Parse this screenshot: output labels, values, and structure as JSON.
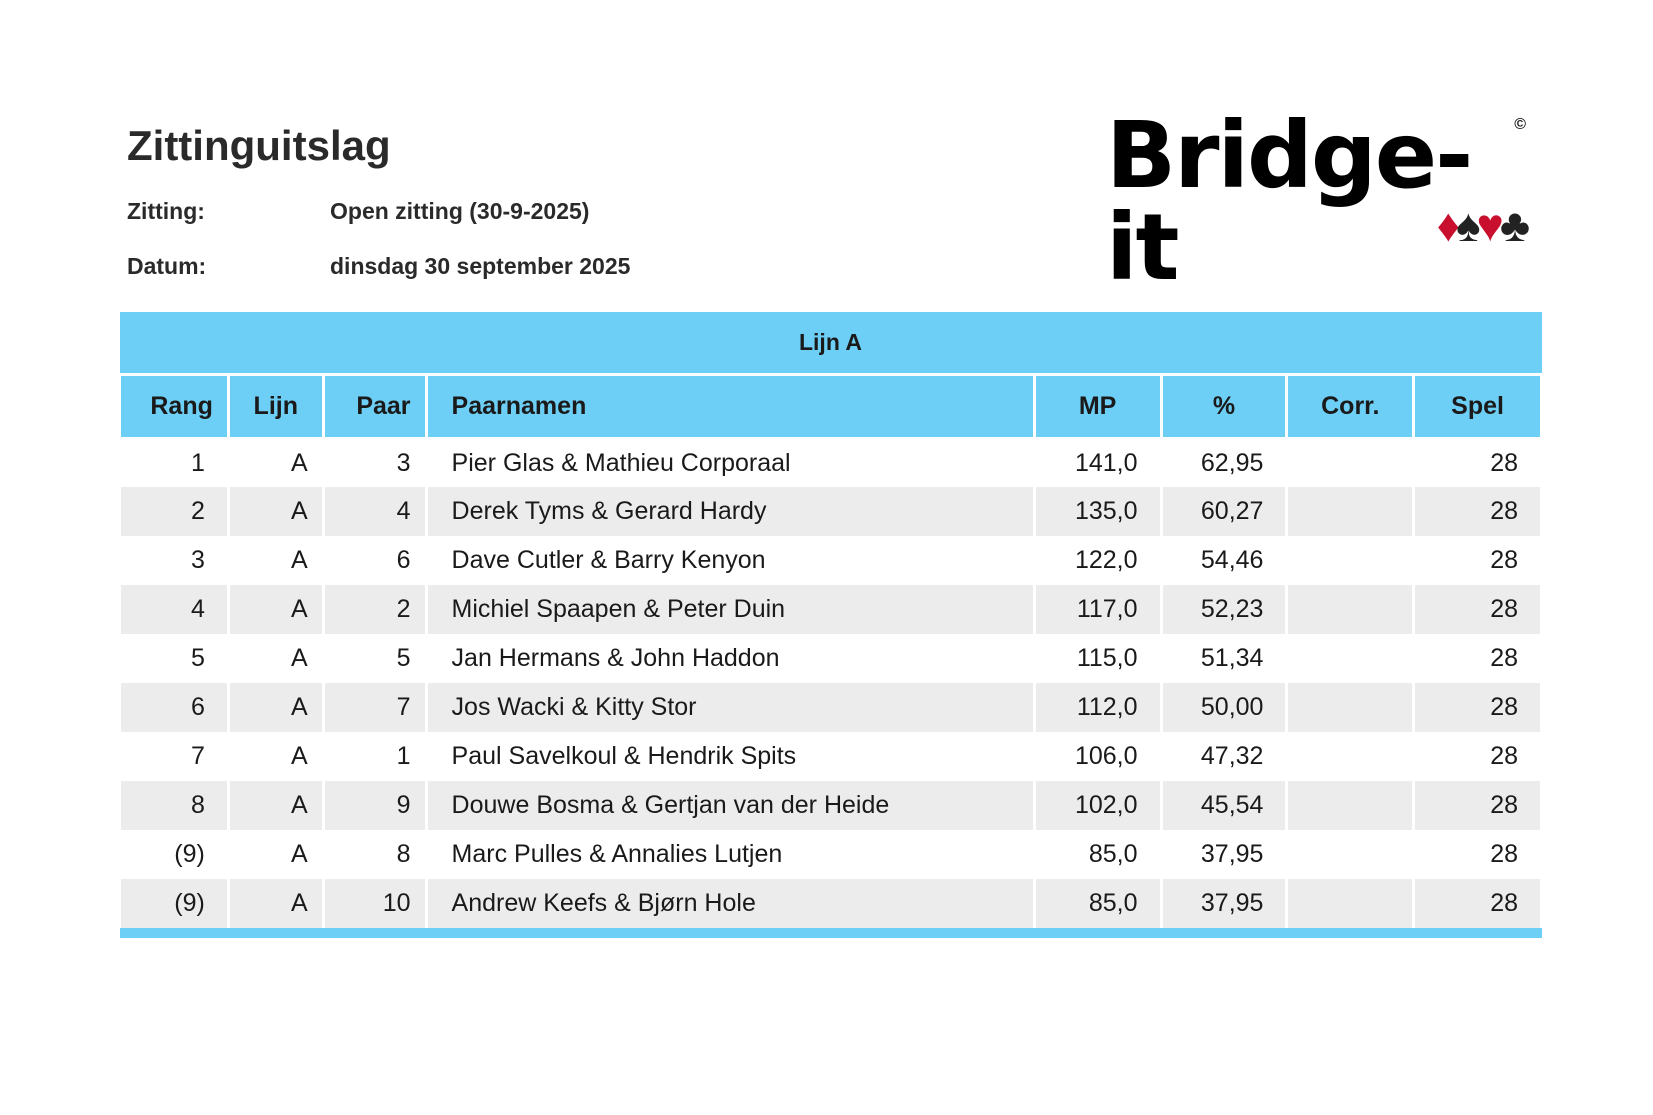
{
  "title": "Zittinguitslag",
  "meta": {
    "zitting_label": "Zitting:",
    "zitting_value": "Open zitting (30-9-2025)",
    "datum_label": "Datum:",
    "datum_value": "dinsdag 30 september 2025"
  },
  "logo": {
    "text": "Bridge-it",
    "copyright": "©",
    "suits": [
      "♦",
      "♠",
      "♥",
      "♣"
    ]
  },
  "table": {
    "group_title": "Lijn A",
    "headers": [
      "Rang",
      "Lijn",
      "Paar",
      "Paarnamen",
      "MP",
      "%",
      "Corr.",
      "Spel"
    ],
    "rows": [
      [
        "1",
        "A",
        "3",
        "Pier Glas & Mathieu Corporaal",
        "141,0",
        "62,95",
        "",
        "28"
      ],
      [
        "2",
        "A",
        "4",
        "Derek Tyms & Gerard Hardy",
        "135,0",
        "60,27",
        "",
        "28"
      ],
      [
        "3",
        "A",
        "6",
        "Dave Cutler & Barry Kenyon",
        "122,0",
        "54,46",
        "",
        "28"
      ],
      [
        "4",
        "A",
        "2",
        "Michiel Spaapen & Peter Duin",
        "117,0",
        "52,23",
        "",
        "28"
      ],
      [
        "5",
        "A",
        "5",
        "Jan Hermans & John Haddon",
        "115,0",
        "51,34",
        "",
        "28"
      ],
      [
        "6",
        "A",
        "7",
        "Jos Wacki & Kitty Stor",
        "112,0",
        "50,00",
        "",
        "28"
      ],
      [
        "7",
        "A",
        "1",
        "Paul Savelkoul & Hendrik Spits",
        "106,0",
        "47,32",
        "",
        "28"
      ],
      [
        "8",
        "A",
        "9",
        "Douwe Bosma & Gertjan van der Heide",
        "102,0",
        "45,54",
        "",
        "28"
      ],
      [
        "(9)",
        "A",
        "8",
        "Marc Pulles & Annalies Lutjen",
        "85,0",
        "37,95",
        "",
        "28"
      ],
      [
        "(9)",
        "A",
        "10",
        "Andrew Keefs & Bjørn Hole",
        "85,0",
        "37,95",
        "",
        "28"
      ]
    ]
  },
  "colors": {
    "header": "#6dcff6",
    "alt_row": "#ececec",
    "suit_red": "#c8102e"
  }
}
